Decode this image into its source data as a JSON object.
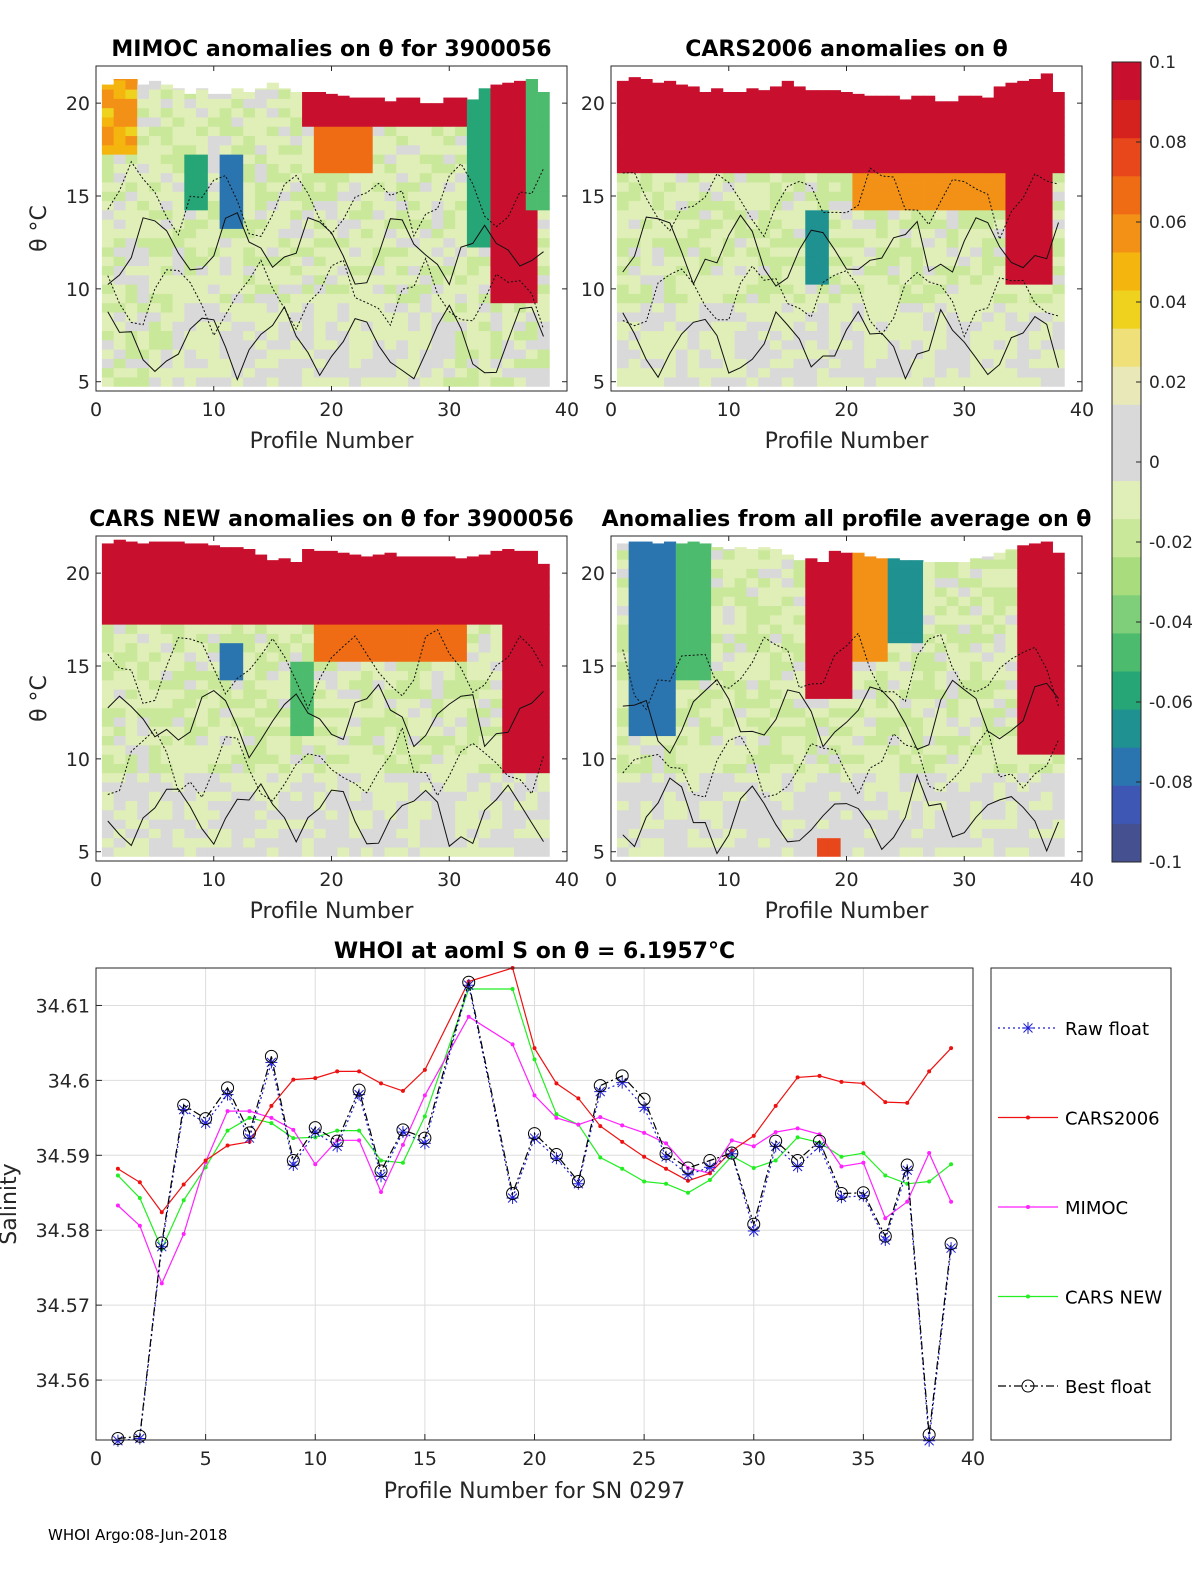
{
  "colorbar": {
    "min": -0.1,
    "max": 0.1,
    "tick_labels": [
      "0.1",
      "0.08",
      "0.06",
      "0.04",
      "0.02",
      "0",
      "-0.02",
      "-0.04",
      "-0.06",
      "-0.08",
      "-0.1"
    ],
    "tick_values": [
      0.1,
      0.08,
      0.06,
      0.04,
      0.02,
      0,
      -0.02,
      -0.04,
      -0.06,
      -0.08,
      -0.1
    ],
    "colors": [
      "#c8102e",
      "#d6221e",
      "#e8461b",
      "#f06c14",
      "#f39117",
      "#f5b50f",
      "#eed21d",
      "#f0e07a",
      "#e8e8b8",
      "#d9d9d9",
      "#d9d9d9",
      "#e0eeb8",
      "#c9e89a",
      "#a9dc7d",
      "#7fcf7a",
      "#4cbb6d",
      "#26a677",
      "#1f9191",
      "#2a74b0",
      "#3f57b4",
      "#44508f"
    ]
  },
  "panels": [
    {
      "title": "MIMOC anomalies on θ  for 3900056",
      "ylabel": "θ °C",
      "xlabel": "Profile Number",
      "xlim": [
        0,
        40
      ],
      "ylim": [
        4.5,
        22
      ],
      "x_ticks": [
        "0",
        "10",
        "20",
        "30",
        "40"
      ],
      "y_ticks": [
        "5",
        "10",
        "15",
        "20"
      ],
      "profile_tops": [
        21.0,
        21.3,
        21.3,
        21.0,
        21.2,
        21.0,
        20.8,
        20.5,
        20.8,
        20.5,
        20.5,
        20.8,
        20.6,
        20.8,
        21.1,
        20.8,
        20.6,
        20.6,
        20.6,
        20.5,
        20.4,
        20.3,
        20.3,
        20.3,
        20.1,
        20.3,
        20.3,
        20.0,
        20.0,
        20.3,
        20.3,
        20.2,
        20.8,
        21.0,
        21.1,
        21.2,
        21.3,
        20.6
      ],
      "scenario": "mimoc"
    },
    {
      "title": "CARS2006 anomalies on θ",
      "ylabel": "",
      "xlabel": "Profile Number",
      "xlim": [
        0,
        40
      ],
      "ylim": [
        4.5,
        22
      ],
      "x_ticks": [
        "0",
        "10",
        "20",
        "30",
        "40"
      ],
      "y_ticks": [
        "5",
        "10",
        "15",
        "20"
      ],
      "profile_tops": [
        21.2,
        21.4,
        21.3,
        21.1,
        21.2,
        21.0,
        20.9,
        20.6,
        20.8,
        20.6,
        20.6,
        20.8,
        20.7,
        20.9,
        21.2,
        20.9,
        20.7,
        20.7,
        20.7,
        20.6,
        20.5,
        20.4,
        20.4,
        20.4,
        20.2,
        20.4,
        20.4,
        20.1,
        20.1,
        20.4,
        20.4,
        20.3,
        20.9,
        21.1,
        21.2,
        21.3,
        21.6,
        20.6
      ],
      "scenario": "cars2006"
    },
    {
      "title": "CARS NEW anomalies on θ for 3900056",
      "ylabel": "θ °C",
      "xlabel": "Profile Number",
      "xlim": [
        0,
        40
      ],
      "ylim": [
        4.5,
        22
      ],
      "x_ticks": [
        "0",
        "10",
        "20",
        "30",
        "40"
      ],
      "y_ticks": [
        "5",
        "10",
        "15",
        "20"
      ],
      "profile_tops": [
        21.6,
        21.8,
        21.7,
        21.6,
        21.7,
        21.7,
        21.7,
        21.6,
        21.6,
        21.5,
        21.4,
        21.4,
        21.3,
        21.0,
        20.7,
        20.8,
        20.6,
        21.3,
        21.2,
        21.2,
        21.1,
        21.0,
        20.9,
        21.0,
        21.1,
        20.9,
        20.9,
        20.9,
        20.9,
        20.9,
        20.8,
        20.9,
        21.0,
        21.2,
        21.3,
        21.2,
        21.2,
        20.5
      ],
      "scenario": "carsnew"
    },
    {
      "title": "Anomalies from all profile average on θ",
      "ylabel": "",
      "xlabel": "Profile Number",
      "xlim": [
        0,
        40
      ],
      "ylim": [
        4.5,
        22
      ],
      "x_ticks": [
        "0",
        "10",
        "20",
        "30",
        "40"
      ],
      "y_ticks": [
        "5",
        "10",
        "15",
        "20"
      ],
      "profile_tops": [
        21.6,
        21.7,
        21.7,
        21.6,
        21.7,
        21.6,
        21.7,
        21.6,
        21.4,
        21.3,
        21.4,
        21.3,
        21.4,
        21.3,
        21.0,
        20.7,
        20.8,
        20.6,
        21.2,
        21.1,
        21.1,
        20.9,
        20.8,
        20.8,
        20.7,
        20.7,
        20.6,
        20.6,
        20.6,
        20.6,
        20.8,
        20.9,
        21.1,
        21.3,
        21.5,
        21.6,
        21.7,
        21.1
      ],
      "scenario": "allavg"
    }
  ],
  "chart_data": {
    "type": "line",
    "title": "WHOI at aoml S on θ = 6.1957°C",
    "xlabel": "Profile Number for SN 0297",
    "ylabel": "Salinity",
    "xlim": [
      0,
      40
    ],
    "ylim": [
      34.552,
      34.615
    ],
    "x_ticks": [
      "0",
      "5",
      "10",
      "15",
      "20",
      "25",
      "30",
      "35",
      "40"
    ],
    "x_tick_values": [
      0,
      5,
      10,
      15,
      20,
      25,
      30,
      35,
      40
    ],
    "y_ticks": [
      "34.56",
      "34.57",
      "34.58",
      "34.59",
      "34.6",
      "34.61"
    ],
    "y_tick_values": [
      34.56,
      34.57,
      34.58,
      34.59,
      34.6,
      34.61
    ],
    "x": [
      1,
      2,
      3,
      4,
      5,
      6,
      7,
      8,
      9,
      10,
      11,
      12,
      13,
      14,
      15,
      17,
      19,
      20,
      21,
      22,
      23,
      24,
      25,
      26,
      27,
      28,
      29,
      30,
      31,
      32,
      33,
      34,
      35,
      36,
      37,
      38,
      39
    ],
    "series": [
      {
        "name": "Raw float",
        "color": "#1f1fd6",
        "dash": "2,3",
        "marker": "star",
        "values": [
          34.5519,
          34.5522,
          34.5778,
          34.5961,
          34.5943,
          34.5981,
          34.5923,
          34.6024,
          34.5887,
          34.5931,
          34.5912,
          34.5981,
          34.5872,
          34.5931,
          34.5916,
          34.6127,
          34.5843,
          34.5923,
          34.5896,
          34.5862,
          34.5985,
          34.5997,
          34.5964,
          34.5898,
          34.5874,
          34.5884,
          34.5902,
          34.5799,
          34.5912,
          34.5885,
          34.5912,
          34.5844,
          34.5846,
          34.5787,
          34.588,
          34.5519,
          34.5776
        ]
      },
      {
        "name": "CARS2006",
        "color": "#ee1111",
        "dash": "",
        "marker": "dot",
        "values": [
          34.5882,
          34.5864,
          34.5824,
          34.5861,
          34.5893,
          34.5913,
          34.5918,
          34.5966,
          34.6001,
          34.6003,
          34.6012,
          34.6012,
          34.5996,
          34.5986,
          34.6014,
          34.6132,
          34.615,
          34.6043,
          34.5996,
          34.5976,
          34.5939,
          34.5918,
          34.5898,
          34.5882,
          34.5866,
          34.5876,
          34.5906,
          34.5926,
          34.5966,
          34.6004,
          34.6006,
          34.5998,
          34.5996,
          34.5971,
          34.597,
          34.6012,
          34.6043
        ]
      },
      {
        "name": "MIMOC",
        "color": "#ff22ff",
        "dash": "",
        "marker": "dot",
        "values": [
          34.5833,
          34.5806,
          34.5729,
          34.5795,
          34.5891,
          34.5959,
          34.5959,
          34.595,
          34.5934,
          34.5888,
          34.592,
          34.592,
          34.5851,
          34.5914,
          34.598,
          34.6085,
          34.6048,
          34.598,
          34.595,
          34.5941,
          34.5951,
          34.594,
          34.593,
          34.5916,
          34.5883,
          34.5876,
          34.592,
          34.5912,
          34.5931,
          34.5936,
          34.5928,
          34.5885,
          34.589,
          34.5816,
          34.5838,
          34.5903,
          34.5838
        ]
      },
      {
        "name": "CARS NEW",
        "color": "#22ee22",
        "dash": "",
        "marker": "dot",
        "values": [
          34.5873,
          34.5843,
          34.5775,
          34.584,
          34.5884,
          34.5933,
          34.595,
          34.5943,
          34.5923,
          34.5924,
          34.5933,
          34.5933,
          34.5893,
          34.589,
          34.5952,
          34.6122,
          34.6122,
          34.6028,
          34.5955,
          34.5941,
          34.5897,
          34.5882,
          34.5865,
          34.5862,
          34.585,
          34.5867,
          34.5899,
          34.5883,
          34.5893,
          34.5924,
          34.5917,
          34.5898,
          34.5903,
          34.5873,
          34.5862,
          34.5865,
          34.5888
        ]
      },
      {
        "name": "Best float",
        "color": "#000000",
        "dash": "8,3,2,3",
        "marker": "circle",
        "values": [
          34.5522,
          34.5525,
          34.5783,
          34.5967,
          34.5949,
          34.599,
          34.593,
          34.6032,
          34.5893,
          34.5937,
          34.5919,
          34.5987,
          34.5879,
          34.5934,
          34.5923,
          34.6131,
          34.5849,
          34.5929,
          34.5901,
          34.5865,
          34.5993,
          34.6006,
          34.5975,
          34.5902,
          34.5883,
          34.5893,
          34.5903,
          34.5808,
          34.5919,
          34.5893,
          34.5919,
          34.5849,
          34.585,
          34.5792,
          34.5887,
          34.5527,
          34.5782
        ]
      }
    ]
  },
  "legend": {
    "items": [
      "Raw float",
      "CARS2006",
      "MIMOC",
      "CARS NEW",
      "Best float"
    ]
  },
  "footer": {
    "text": "WHOI Argo:08-Jun-2018"
  }
}
